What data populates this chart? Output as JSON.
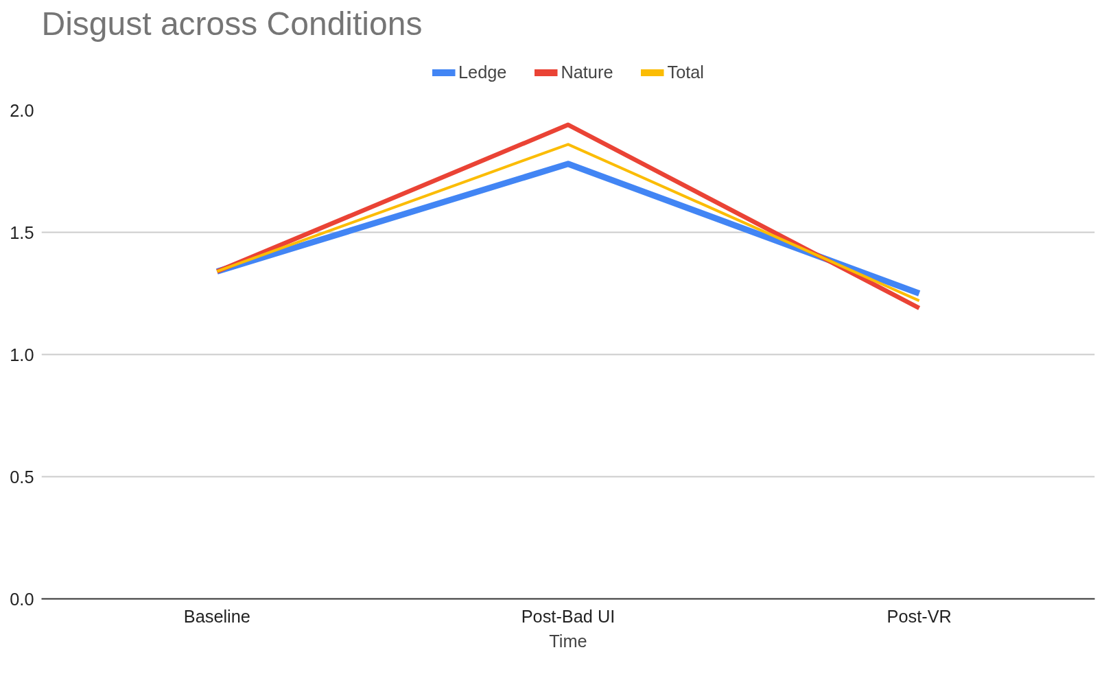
{
  "chart_data": {
    "type": "line",
    "title": "Disgust across Conditions",
    "xlabel": "Time",
    "categories": [
      "Baseline",
      "Post-Bad UI",
      "Post-VR"
    ],
    "series": [
      {
        "name": "Ledge",
        "color": "#4285f4",
        "values": [
          1.34,
          1.78,
          1.25
        ]
      },
      {
        "name": "Nature",
        "color": "#ea4335",
        "values": [
          1.34,
          1.94,
          1.19
        ]
      },
      {
        "name": "Total",
        "color": "#fbbc04",
        "values": [
          1.34,
          1.86,
          1.22
        ]
      }
    ],
    "ylim": [
      0,
      2
    ],
    "yticks": [
      {
        "value": 0,
        "label": "0.0"
      },
      {
        "value": 0.5,
        "label": "0.5"
      },
      {
        "value": 1,
        "label": "1.0"
      },
      {
        "value": 1.5,
        "label": "1.5"
      },
      {
        "value": 2,
        "label": "2.0"
      }
    ],
    "grid": "y",
    "legend": "top",
    "marker": "none",
    "line_style": "solid"
  }
}
